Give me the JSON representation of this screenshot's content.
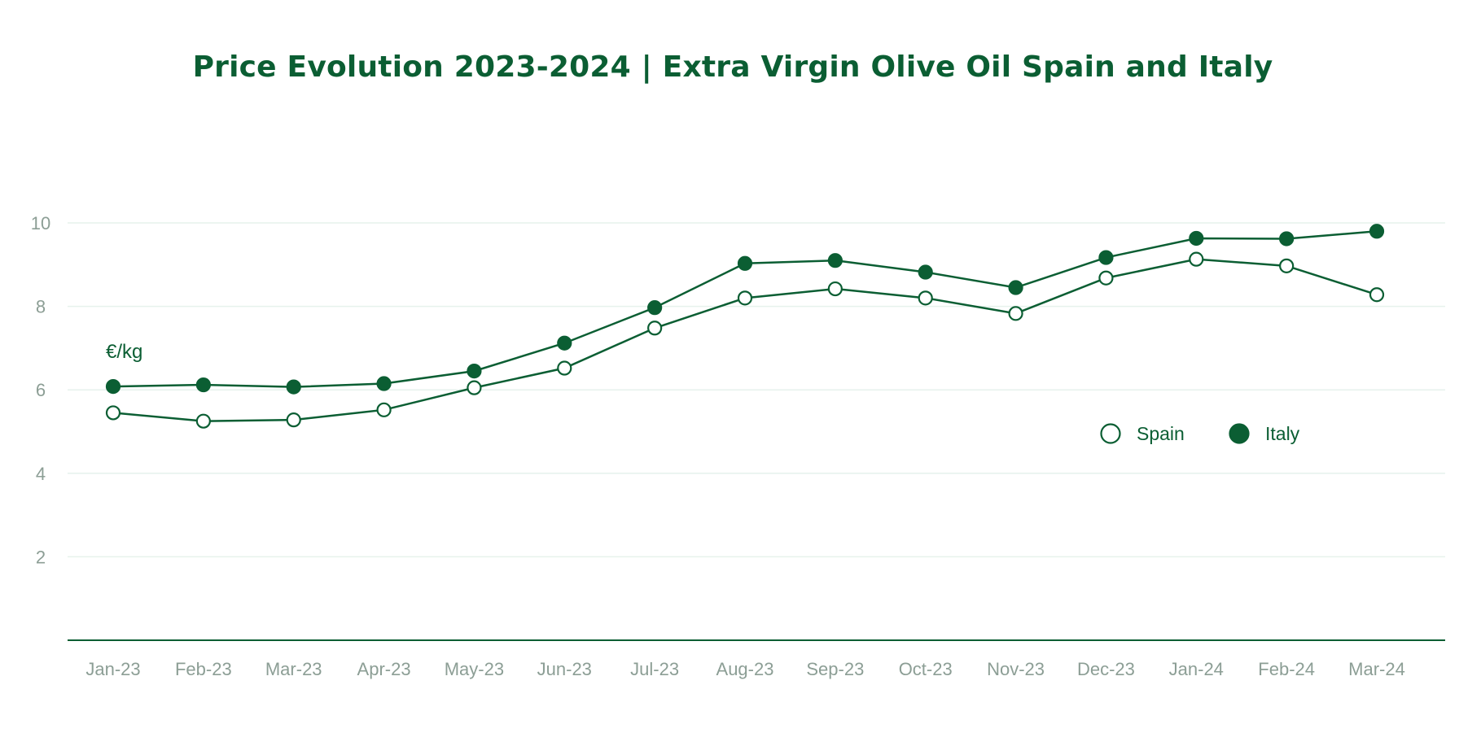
{
  "chart_data": {
    "type": "line",
    "title": "Price Evolution 2023-2024 | Extra Virgin Olive Oil Spain and Italy",
    "ylabel": "€/kg",
    "xlabel": "",
    "categories": [
      "Jan-23",
      "Feb-23",
      "Mar-23",
      "Apr-23",
      "May-23",
      "Jun-23",
      "Jul-23",
      "Aug-23",
      "Sep-23",
      "Oct-23",
      "Nov-23",
      "Dec-23",
      "Jan-24",
      "Feb-24",
      "Mar-24"
    ],
    "yticks": [
      "2",
      "4",
      "6",
      "8",
      "10"
    ],
    "ylim": [
      0,
      10
    ],
    "grid": true,
    "legend_position": "right-center",
    "series": [
      {
        "name": "Spain",
        "marker": "open-circle",
        "values": [
          5.45,
          5.25,
          5.28,
          5.52,
          6.05,
          6.52,
          7.48,
          8.2,
          8.42,
          8.2,
          7.83,
          8.68,
          9.13,
          8.97,
          8.28
        ]
      },
      {
        "name": "Italy",
        "marker": "filled-circle",
        "values": [
          6.08,
          6.12,
          6.07,
          6.15,
          6.45,
          7.12,
          7.97,
          9.03,
          9.1,
          8.82,
          8.45,
          9.17,
          9.63,
          9.62,
          9.8
        ]
      }
    ],
    "colors": {
      "line": "#0b5e33",
      "grid": "#e6f2ec",
      "axis": "#0b5e33",
      "tick": "#8c9e95"
    }
  }
}
